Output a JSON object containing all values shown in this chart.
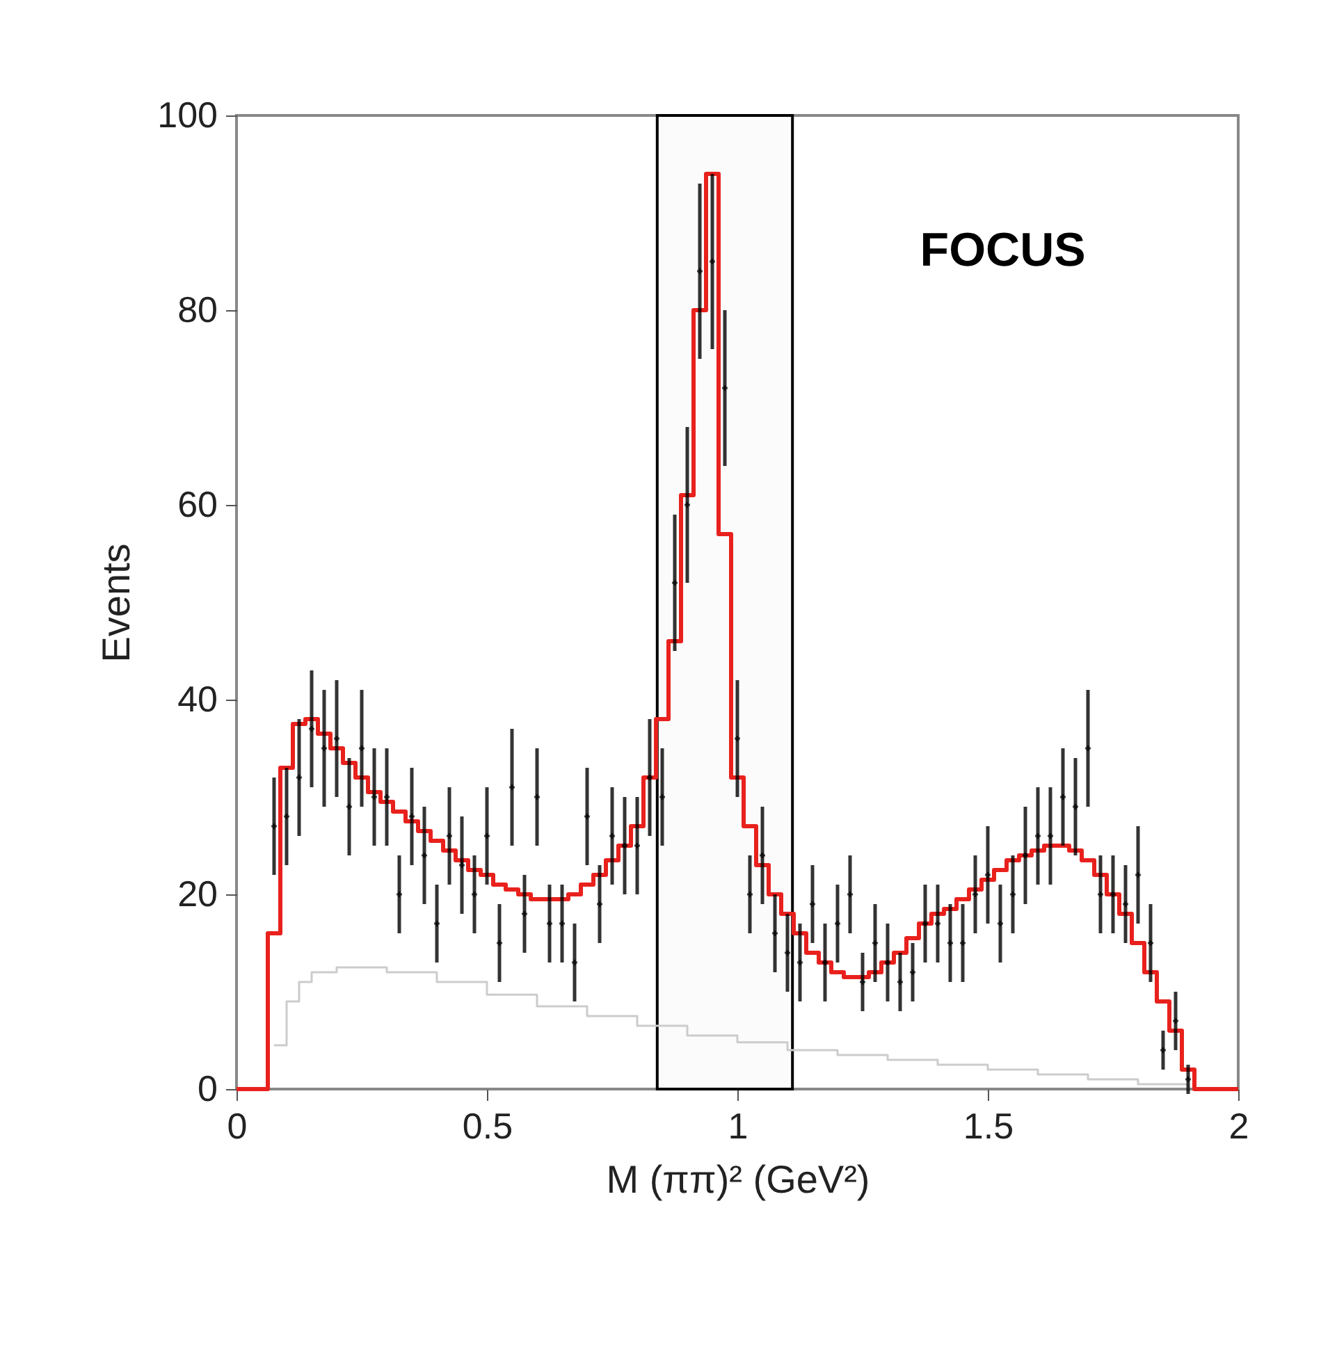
{
  "chart_data": {
    "type": "scatter",
    "xlabel": "M (ππ)² (GeV²)",
    "ylabel": "Events",
    "annotations": [
      "FOCUS"
    ],
    "xlim": [
      0,
      2
    ],
    "ylim": [
      0,
      100
    ],
    "xticks": [
      0,
      0.5,
      1,
      1.5,
      2
    ],
    "yticks": [
      0,
      20,
      40,
      60,
      80,
      100
    ],
    "grid": false,
    "bands": [
      {
        "axis": "x",
        "from": 0.84,
        "to": 1.11,
        "color": "#000000"
      }
    ],
    "series": [
      {
        "type": "step",
        "color": "#cccccc",
        "x": [
          0.075,
          0.1,
          0.125,
          0.15,
          0.2,
          0.25,
          0.3,
          0.4,
          0.5,
          0.6,
          0.7,
          0.8,
          0.9,
          1.0,
          1.1,
          1.2,
          1.3,
          1.4,
          1.5,
          1.6,
          1.7,
          1.8,
          1.9
        ],
        "values": [
          4.5,
          9,
          11,
          12,
          12.5,
          12.5,
          12,
          11,
          9.7,
          8.5,
          7.5,
          6.5,
          5.5,
          4.8,
          4,
          3.5,
          3,
          2.5,
          2,
          1.5,
          1,
          0.5,
          0
        ]
      },
      {
        "type": "step",
        "color": "#e8211d",
        "x": [
          0,
          0.0625,
          0.0875,
          0.1125,
          0.1375,
          0.1625,
          0.1875,
          0.2125,
          0.2375,
          0.2625,
          0.2875,
          0.3125,
          0.3375,
          0.3625,
          0.3875,
          0.4125,
          0.4375,
          0.4625,
          0.4875,
          0.5125,
          0.5375,
          0.5625,
          0.5875,
          0.6125,
          0.6375,
          0.6625,
          0.6875,
          0.7125,
          0.7375,
          0.7625,
          0.7875,
          0.8125,
          0.8375,
          0.8625,
          0.8875,
          0.9125,
          0.9375,
          0.9625,
          0.9875,
          1.0125,
          1.0375,
          1.0625,
          1.0875,
          1.1125,
          1.1375,
          1.1625,
          1.1875,
          1.2125,
          1.2375,
          1.2625,
          1.2875,
          1.3125,
          1.3375,
          1.3625,
          1.3875,
          1.4125,
          1.4375,
          1.4625,
          1.4875,
          1.5125,
          1.5375,
          1.5625,
          1.5875,
          1.6125,
          1.6375,
          1.6625,
          1.6875,
          1.7125,
          1.7375,
          1.7625,
          1.7875,
          1.8125,
          1.8375,
          1.8625,
          1.8875,
          1.9125,
          2
        ],
        "values": [
          0,
          16,
          33,
          37.5,
          38,
          36.5,
          35,
          33.5,
          32,
          30.5,
          29.5,
          28.5,
          27.5,
          26.5,
          25.5,
          24.5,
          23.5,
          22.5,
          22,
          21,
          20.5,
          20,
          19.5,
          19.5,
          19.5,
          20,
          21,
          22,
          23.5,
          25,
          27,
          32,
          38,
          46,
          61,
          80,
          94,
          57,
          32,
          27,
          23,
          20,
          18,
          16,
          14,
          13,
          12,
          11.5,
          11.5,
          12,
          13,
          14,
          15.5,
          17,
          18,
          18.5,
          19.5,
          20.5,
          21.5,
          22.5,
          23.5,
          24,
          24.5,
          25,
          25,
          24.5,
          23.5,
          22,
          20,
          18,
          15,
          12,
          9,
          6,
          2,
          0,
          0
        ]
      },
      {
        "color": "#000000",
        "marker": "cross",
        "x": [
          0.075,
          0.1,
          0.125,
          0.15,
          0.175,
          0.2,
          0.225,
          0.25,
          0.275,
          0.3,
          0.325,
          0.35,
          0.375,
          0.4,
          0.425,
          0.45,
          0.475,
          0.5,
          0.525,
          0.55,
          0.575,
          0.6,
          0.625,
          0.65,
          0.675,
          0.7,
          0.725,
          0.75,
          0.775,
          0.8,
          0.825,
          0.85,
          0.875,
          0.9,
          0.925,
          0.95,
          0.975,
          1.0,
          1.025,
          1.05,
          1.075,
          1.1,
          1.125,
          1.15,
          1.175,
          1.2,
          1.225,
          1.25,
          1.275,
          1.3,
          1.325,
          1.35,
          1.375,
          1.4,
          1.425,
          1.45,
          1.475,
          1.5,
          1.525,
          1.55,
          1.575,
          1.6,
          1.625,
          1.65,
          1.675,
          1.7,
          1.725,
          1.75,
          1.775,
          1.8,
          1.825,
          1.85,
          1.875,
          1.9
        ],
        "values": [
          27,
          28,
          32,
          37,
          35,
          36,
          29,
          35,
          30,
          30,
          20,
          28,
          24,
          17,
          26,
          23,
          20,
          26,
          15,
          31,
          18,
          30,
          17,
          17,
          13,
          28,
          19,
          26,
          25,
          25,
          32,
          30,
          52,
          60,
          84,
          85,
          72,
          36,
          20,
          24,
          16,
          14,
          13,
          19,
          13,
          17,
          20,
          11,
          15,
          13,
          11,
          12,
          17,
          17,
          15,
          15,
          20,
          22,
          17,
          20,
          24,
          26,
          26,
          30,
          29,
          35,
          20,
          20,
          19,
          22,
          15,
          4,
          7,
          1
        ],
        "errors": [
          5,
          5,
          6,
          6,
          6,
          6,
          5,
          6,
          5,
          5,
          4,
          5,
          5,
          4,
          5,
          5,
          4,
          5,
          4,
          6,
          4,
          5,
          4,
          4,
          4,
          5,
          4,
          5,
          5,
          5,
          6,
          5,
          7,
          8,
          9,
          9,
          8,
          6,
          4,
          5,
          4,
          4,
          4,
          4,
          4,
          4,
          4,
          3,
          4,
          4,
          3,
          3,
          4,
          4,
          4,
          4,
          4,
          5,
          4,
          4,
          5,
          5,
          5,
          5,
          5,
          6,
          4,
          4,
          4,
          5,
          4,
          2,
          3,
          1.5
        ]
      }
    ]
  }
}
